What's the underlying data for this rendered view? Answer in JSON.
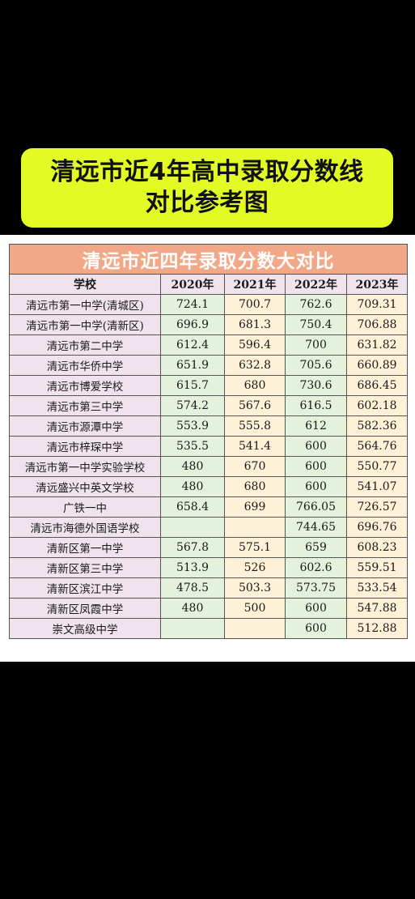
{
  "banner": {
    "line1": "清远市近4年高中录取分数线",
    "line2": "对比参考图"
  },
  "table": {
    "title": "清远市近四年录取分数大对比",
    "headers": [
      "学校",
      "2020年",
      "2021年",
      "2022年",
      "2023年"
    ],
    "rows": [
      {
        "school": "清远市第一中学(清城区)",
        "y2020": "724.1",
        "y2021": "700.7",
        "y2022": "762.6",
        "y2023": "709.31"
      },
      {
        "school": "清远市第一中学(清新区)",
        "y2020": "696.9",
        "y2021": "681.3",
        "y2022": "750.4",
        "y2023": "706.88"
      },
      {
        "school": "清远市第二中学",
        "y2020": "612.4",
        "y2021": "596.4",
        "y2022": "700",
        "y2023": "631.82"
      },
      {
        "school": "清远市华侨中学",
        "y2020": "651.9",
        "y2021": "632.8",
        "y2022": "705.6",
        "y2023": "660.89"
      },
      {
        "school": "清远市博爱学校",
        "y2020": "615.7",
        "y2021": "680",
        "y2022": "730.6",
        "y2023": "686.45"
      },
      {
        "school": "清远市第三中学",
        "y2020": "574.2",
        "y2021": "567.6",
        "y2022": "616.5",
        "y2023": "602.18"
      },
      {
        "school": "清远市源潭中学",
        "y2020": "553.9",
        "y2021": "555.8",
        "y2022": "612",
        "y2023": "582.36"
      },
      {
        "school": "清远市梓琛中学",
        "y2020": "535.5",
        "y2021": "541.4",
        "y2022": "600",
        "y2023": "564.76"
      },
      {
        "school": "清远市第一中学实验学校",
        "y2020": "480",
        "y2021": "670",
        "y2022": "600",
        "y2023": "550.77"
      },
      {
        "school": "清远盛兴中英文学校",
        "y2020": "480",
        "y2021": "680",
        "y2022": "600",
        "y2023": "541.07"
      },
      {
        "school": "广铁一中",
        "y2020": "658.4",
        "y2021": "699",
        "y2022": "766.05",
        "y2023": "726.57"
      },
      {
        "school": "清远市海德外国语学校",
        "y2020": "",
        "y2021": "",
        "y2022": "744.65",
        "y2023": "696.76"
      },
      {
        "school": "清新区第一中学",
        "y2020": "567.8",
        "y2021": "575.1",
        "y2022": "659",
        "y2023": "608.23"
      },
      {
        "school": "清新区第三中学",
        "y2020": "513.9",
        "y2021": "526",
        "y2022": "602.6",
        "y2023": "559.51"
      },
      {
        "school": "清新区滨江中学",
        "y2020": "478.5",
        "y2021": "503.3",
        "y2022": "573.75",
        "y2023": "533.54"
      },
      {
        "school": "清新区凤霞中学",
        "y2020": "480",
        "y2021": "500",
        "y2022": "600",
        "y2023": "547.88"
      },
      {
        "school": "崇文高级中学",
        "y2020": "",
        "y2021": "",
        "y2022": "600",
        "y2023": "512.88"
      }
    ]
  }
}
